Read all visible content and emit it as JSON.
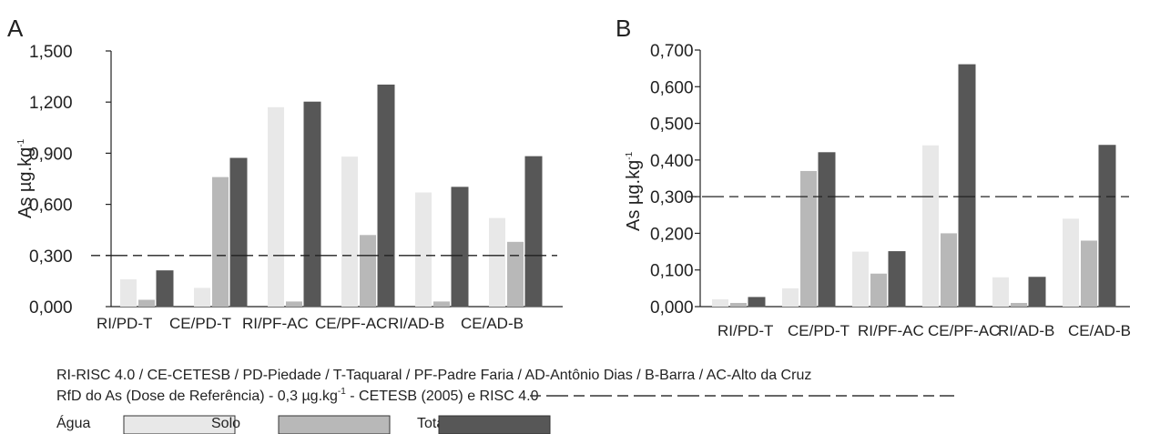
{
  "chart_data": [
    {
      "panel": "A",
      "type": "bar",
      "ylabel": "As µg.kg-1",
      "ylim": [
        0,
        1.5
      ],
      "yticks": [
        "0,000",
        "0,300",
        "0,600",
        "0,900",
        "1,200",
        "1,500"
      ],
      "categories": [
        "RI/PD-T",
        "CE/PD-T",
        "RI/PF-AC",
        "CE/PF-AC",
        "RI/AD-B",
        "CE/AD-B"
      ],
      "series": [
        {
          "name": "Água",
          "color": "#e8e8e8",
          "values": [
            0.16,
            0.11,
            1.17,
            0.88,
            0.67,
            0.52
          ]
        },
        {
          "name": "Solo",
          "color": "#b8b8b8",
          "values": [
            0.04,
            0.76,
            0.03,
            0.42,
            0.03,
            0.38
          ]
        },
        {
          "name": "Total",
          "color": "#575757",
          "values": [
            0.21,
            0.87,
            1.2,
            1.3,
            0.7,
            0.88
          ]
        }
      ],
      "reference_line": 0.3,
      "grid": false
    },
    {
      "panel": "B",
      "type": "bar",
      "ylabel": "As µg.kg-1",
      "ylim": [
        0,
        0.7
      ],
      "yticks": [
        "0,000",
        "0,100",
        "0,200",
        "0,300",
        "0,400",
        "0,500",
        "0,600",
        "0,700"
      ],
      "categories": [
        "RI/PD-T",
        "CE/PD-T",
        "RI/PF-AC",
        "CE/PF-AC",
        "RI/AD-B",
        "CE/AD-B"
      ],
      "series": [
        {
          "name": "Água",
          "color": "#e8e8e8",
          "values": [
            0.02,
            0.05,
            0.15,
            0.44,
            0.08,
            0.24
          ]
        },
        {
          "name": "Solo",
          "color": "#b8b8b8",
          "values": [
            0.01,
            0.37,
            0.09,
            0.2,
            0.01,
            0.18
          ]
        },
        {
          "name": "Total",
          "color": "#575757",
          "values": [
            0.025,
            0.42,
            0.15,
            0.66,
            0.08,
            0.44
          ]
        }
      ],
      "reference_line": 0.3,
      "grid": false
    }
  ],
  "footer": {
    "abbreviations": "RI-RISC 4.0 / CE-CETESB / PD-Piedade / T-Taquaral / PF-Padre Faria / AD-Antônio Dias / B-Barra / AC-Alto da Cruz",
    "rfd_before": "RfD do As (Dose de Referência) - 0,3 µg.kg",
    "rfd_sup": "-1",
    "rfd_after": " - CETESB (2005) e RISC 4.0"
  },
  "ylabel_main": "As µg.kg",
  "ylabel_sup": "-1",
  "legend": [
    {
      "label": "Água",
      "color": "#e8e8e8"
    },
    {
      "label": "Solo",
      "color": "#b8b8b8"
    },
    {
      "label": "Total",
      "color": "#575757"
    }
  ]
}
